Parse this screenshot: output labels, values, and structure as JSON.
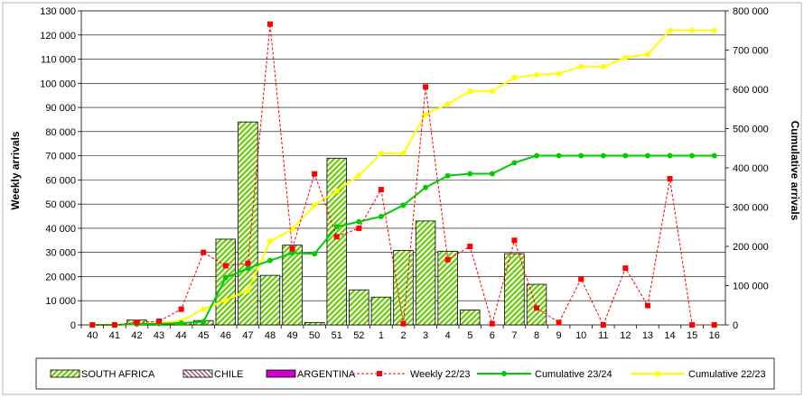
{
  "chart_data": {
    "type": "bar",
    "title": "",
    "ylabel_left": "Weekly arrivals",
    "ylabel_right": "Cumulative arrivals",
    "xlabel": "",
    "categories": [
      "40",
      "41",
      "42",
      "43",
      "44",
      "45",
      "46",
      "47",
      "48",
      "49",
      "50",
      "51",
      "52",
      "1",
      "2",
      "3",
      "4",
      "5",
      "6",
      "7",
      "8",
      "9",
      "10",
      "11",
      "12",
      "13",
      "14",
      "15",
      "16"
    ],
    "ylim_left": [
      0,
      130000
    ],
    "yticks_left": [
      "0",
      "10 000",
      "20 000",
      "30 000",
      "40 000",
      "50 000",
      "60 000",
      "70 000",
      "80 000",
      "90 000",
      "100 000",
      "110 000",
      "120 000",
      "130 000"
    ],
    "ylim_right": [
      0,
      800000
    ],
    "yticks_right": [
      "0",
      "100 000",
      "200 000",
      "300 000",
      "400 000",
      "500 000",
      "600 000",
      "700 000",
      "800 000"
    ],
    "grid": true,
    "legend_position": "bottom",
    "series": [
      {
        "name": "SOUTH AFRICA",
        "kind": "bar",
        "axis": "left",
        "color": "#66cc00",
        "values": [
          0,
          0,
          2000,
          800,
          1000,
          1800,
          35500,
          84000,
          20500,
          33000,
          1000,
          69000,
          14500,
          11500,
          30800,
          43000,
          30500,
          6200,
          0,
          29500,
          16800,
          0,
          0,
          0,
          0,
          0,
          0,
          0,
          0
        ]
      },
      {
        "name": "CHILE",
        "kind": "bar",
        "axis": "left",
        "color": "#993366",
        "values": [
          0,
          0,
          0,
          0,
          0,
          0,
          0,
          0,
          0,
          0,
          0,
          0,
          0,
          0,
          0,
          0,
          0,
          0,
          0,
          0,
          0,
          0,
          0,
          0,
          0,
          0,
          0,
          0,
          0
        ]
      },
      {
        "name": "ARGENTINA",
        "kind": "bar",
        "axis": "left",
        "color": "#cc00cc",
        "values": [
          0,
          0,
          0,
          0,
          0,
          0,
          0,
          0,
          0,
          0,
          0,
          0,
          0,
          0,
          0,
          0,
          0,
          0,
          0,
          0,
          0,
          0,
          0,
          0,
          0,
          0,
          0,
          0,
          0
        ]
      },
      {
        "name": "Weekly 22/23",
        "kind": "line",
        "axis": "left",
        "color": "#ff0000",
        "dashed": true,
        "values": [
          0,
          0,
          1000,
          1500,
          6500,
          30000,
          24500,
          25500,
          124500,
          31500,
          62500,
          36500,
          40000,
          56000,
          500,
          98500,
          27000,
          32500,
          500,
          35000,
          7000,
          1000,
          19000,
          0,
          23500,
          8000,
          60500,
          0,
          0
        ]
      },
      {
        "name": "Cumulative 23/24",
        "kind": "line",
        "axis": "right",
        "color": "#00cc00",
        "values": [
          0,
          0,
          2000,
          3000,
          4500,
          8000,
          120000,
          144000,
          164000,
          183000,
          181000,
          250000,
          263000,
          276000,
          305000,
          350000,
          380000,
          385000,
          385000,
          413000,
          431000,
          431000,
          431000,
          431000,
          431000,
          431000,
          431000,
          431000,
          431000
        ]
      },
      {
        "name": "Cumulative 22/23",
        "kind": "line",
        "axis": "right",
        "color": "#ffff00",
        "values": [
          0,
          0,
          2000,
          5000,
          10000,
          40000,
          63000,
          88000,
          213000,
          244000,
          305000,
          341000,
          381000,
          437000,
          437000,
          536000,
          563000,
          595000,
          595000,
          630000,
          637000,
          640000,
          658000,
          658000,
          681000,
          689000,
          750000,
          750000,
          750000
        ]
      }
    ]
  }
}
